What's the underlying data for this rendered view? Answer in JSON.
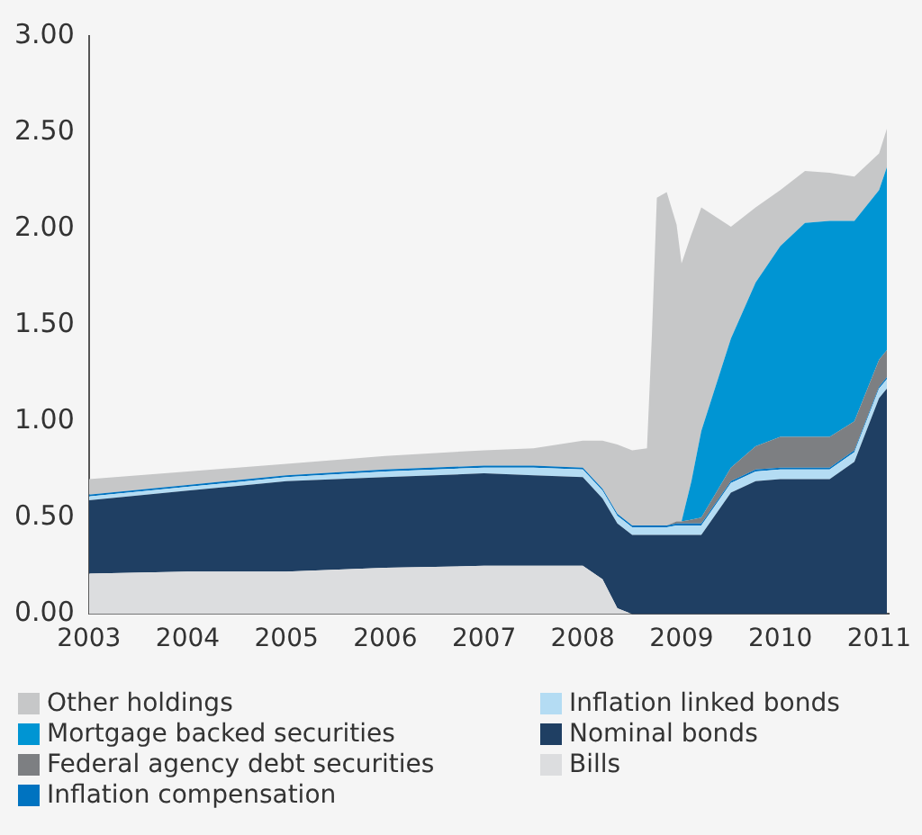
{
  "chart_data": {
    "type": "area",
    "stacked": true,
    "legend": "bottom",
    "grid": false,
    "x": [
      2003,
      2004,
      2005,
      2006,
      2007,
      2007.5,
      2008,
      2008.2,
      2008.35,
      2008.5,
      2008.65,
      2008.7,
      2008.75,
      2008.85,
      2008.95,
      2009.0,
      2009.1,
      2009.2,
      2009.5,
      2009.75,
      2010,
      2010.25,
      2010.5,
      2010.75,
      2011,
      2011.08
    ],
    "xlim": [
      2003,
      2011.1
    ],
    "xticks": [
      2003,
      2004,
      2005,
      2006,
      2007,
      2008,
      2009,
      2010,
      2011
    ],
    "ylim": [
      0,
      3
    ],
    "yticks": [
      {
        "value": 0,
        "label": "0.00"
      },
      {
        "value": 0.5,
        "label": "0.50"
      },
      {
        "value": 1,
        "label": "1.00"
      },
      {
        "value": 1.5,
        "label": "1.50"
      },
      {
        "value": 2,
        "label": "2.00"
      },
      {
        "value": 2.5,
        "label": "2.50"
      },
      {
        "value": 3,
        "label": "3.00"
      }
    ],
    "series": [
      {
        "name": "Bills",
        "color": "#dcdddf",
        "values": [
          0.21,
          0.22,
          0.22,
          0.24,
          0.25,
          0.25,
          0.25,
          0.18,
          0.03,
          0,
          0,
          0,
          0,
          0,
          0,
          0,
          0,
          0,
          0,
          0,
          0,
          0,
          0,
          0,
          0,
          0
        ]
      },
      {
        "name": "Nominal bonds",
        "color": "#1f3f63",
        "values": [
          0.38,
          0.42,
          0.47,
          0.47,
          0.48,
          0.47,
          0.46,
          0.42,
          0.44,
          0.41,
          0.41,
          0.41,
          0.41,
          0.41,
          0.41,
          0.41,
          0.41,
          0.41,
          0.63,
          0.69,
          0.7,
          0.7,
          0.7,
          0.79,
          1.12,
          1.17
        ]
      },
      {
        "name": "Inflation linked bonds",
        "color": "#b4dcf3",
        "values": [
          0.02,
          0.02,
          0.02,
          0.03,
          0.03,
          0.04,
          0.04,
          0.04,
          0.04,
          0.04,
          0.04,
          0.04,
          0.04,
          0.04,
          0.05,
          0.05,
          0.05,
          0.05,
          0.05,
          0.05,
          0.05,
          0.05,
          0.05,
          0.05,
          0.05,
          0.05
        ]
      },
      {
        "name": "Inflation compensation",
        "color": "#0073c0",
        "values": [
          0.01,
          0.01,
          0.01,
          0.01,
          0.01,
          0.01,
          0.01,
          0.01,
          0.01,
          0.01,
          0.01,
          0.01,
          0.01,
          0.01,
          0.01,
          0.01,
          0.01,
          0.01,
          0.01,
          0.01,
          0.01,
          0.01,
          0.01,
          0.01,
          0.01,
          0.01
        ]
      },
      {
        "name": "Federal agency debt securities",
        "color": "#7d7f82",
        "values": [
          0,
          0,
          0,
          0,
          0,
          0,
          0,
          0,
          0,
          0,
          0,
          0,
          0,
          0,
          0.01,
          0.01,
          0.02,
          0.03,
          0.07,
          0.12,
          0.16,
          0.16,
          0.16,
          0.15,
          0.14,
          0.14
        ]
      },
      {
        "name": "Mortgage backed securities",
        "color": "#0095d3",
        "values": [
          0,
          0,
          0,
          0,
          0,
          0,
          0,
          0,
          0,
          0,
          0,
          0,
          0,
          0,
          0,
          0,
          0.2,
          0.45,
          0.67,
          0.85,
          0.99,
          1.11,
          1.12,
          1.04,
          0.88,
          0.95
        ]
      },
      {
        "name": "Other holdings",
        "color": "#c6c7c8",
        "values": [
          0.08,
          0.07,
          0.06,
          0.07,
          0.08,
          0.09,
          0.14,
          0.25,
          0.36,
          0.39,
          0.4,
          0.99,
          1.7,
          1.73,
          1.54,
          1.34,
          1.28,
          1.16,
          0.58,
          0.39,
          0.29,
          0.27,
          0.25,
          0.23,
          0.19,
          0.2
        ]
      }
    ]
  }
}
